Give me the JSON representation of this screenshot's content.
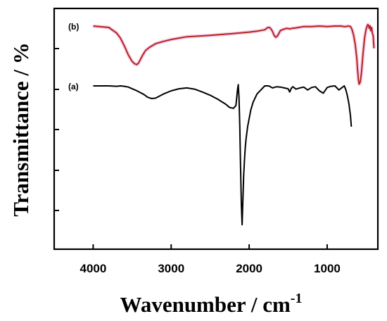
{
  "chart_data": {
    "type": "line",
    "title": "",
    "xlabel": "Wavenumber / cm",
    "xlabel_superscript": "-1",
    "ylabel": "Transmittance / %",
    "xlim": [
      4500,
      350
    ],
    "x_reversed": true,
    "x_ticks": [
      4000,
      3000,
      2000,
      1000
    ],
    "x_tick_labels": [
      "4000",
      "3000",
      "2000",
      "1000"
    ],
    "y_tick_labels_shown": false,
    "grid": false,
    "series": [
      {
        "name": "(b)",
        "color": "#b3261e",
        "x": [
          4000,
          3800,
          3700,
          3650,
          3600,
          3550,
          3500,
          3470,
          3440,
          3420,
          3400,
          3370,
          3330,
          3280,
          3200,
          3100,
          3000,
          2800,
          2500,
          2200,
          2000,
          1900,
          1800,
          1760,
          1740,
          1720,
          1700,
          1680,
          1660,
          1640,
          1620,
          1600,
          1560,
          1520,
          1480,
          1450,
          1400,
          1300,
          1200,
          1100,
          1000,
          900,
          820,
          790,
          760,
          730,
          700,
          680,
          660,
          640,
          620,
          610,
          600,
          590,
          575,
          560,
          540,
          520,
          500,
          480,
          470,
          460,
          450,
          440,
          430,
          420,
          410,
          400
        ],
        "y": [
          0.0,
          0.3,
          1.5,
          2.6,
          4.3,
          6.2,
          7.6,
          8.1,
          8.3,
          8.0,
          7.4,
          6.4,
          5.3,
          4.6,
          3.8,
          3.3,
          2.9,
          2.3,
          2.0,
          1.6,
          1.3,
          1.1,
          0.8,
          0.3,
          0.3,
          0.6,
          1.2,
          2.0,
          2.4,
          2.2,
          1.6,
          1.0,
          0.7,
          0.5,
          0.6,
          0.5,
          0.4,
          0.1,
          0.1,
          0.0,
          0.1,
          0.0,
          0.0,
          0.1,
          0.1,
          0.0,
          0.1,
          0.8,
          2.0,
          4.0,
          7.0,
          9.5,
          11.5,
          12.5,
          12.0,
          10.0,
          6.0,
          2.5,
          0.6,
          -0.3,
          -0.2,
          0.5,
          0.0,
          1.0,
          0.3,
          1.5,
          2.0,
          4.8
        ]
      },
      {
        "name": "(a)",
        "color": "#000000",
        "x": [
          4000,
          3900,
          3800,
          3700,
          3650,
          3600,
          3550,
          3500,
          3450,
          3400,
          3350,
          3300,
          3250,
          3200,
          3150,
          3100,
          3000,
          2900,
          2800,
          2700,
          2600,
          2500,
          2400,
          2300,
          2250,
          2200,
          2170,
          2150,
          2140,
          2130,
          2120,
          2110,
          2100,
          2090,
          2080,
          2070,
          2060,
          2050,
          2040,
          2020,
          2000,
          1980,
          1950,
          1900,
          1850,
          1800,
          1750,
          1700,
          1650,
          1600,
          1550,
          1500,
          1480,
          1460,
          1440,
          1400,
          1350,
          1300,
          1250,
          1200,
          1150,
          1100,
          1050,
          1000,
          950,
          900,
          850,
          800,
          780,
          760,
          740,
          720,
          700,
          690
        ],
        "y": [
          0.0,
          0.0,
          0.0,
          0.1,
          0.0,
          0.1,
          0.3,
          0.7,
          1.1,
          1.6,
          2.1,
          2.8,
          3.1,
          3.0,
          2.5,
          2.0,
          1.2,
          0.7,
          0.5,
          0.8,
          1.5,
          2.3,
          3.3,
          4.5,
          5.3,
          5.5,
          4.8,
          1.0,
          -0.3,
          3.0,
          10.0,
          20.0,
          29.0,
          34.0,
          28.0,
          22.0,
          18.0,
          15.0,
          13.0,
          10.0,
          8.0,
          6.0,
          4.0,
          2.0,
          1.0,
          0.0,
          0.0,
          0.5,
          0.2,
          0.3,
          0.5,
          0.7,
          1.5,
          0.6,
          0.2,
          0.8,
          0.5,
          0.3,
          1.0,
          0.4,
          0.2,
          1.2,
          1.8,
          0.4,
          0.1,
          0.0,
          1.0,
          0.3,
          0.0,
          1.0,
          2.5,
          4.5,
          7.5,
          10.0
        ]
      }
    ]
  }
}
